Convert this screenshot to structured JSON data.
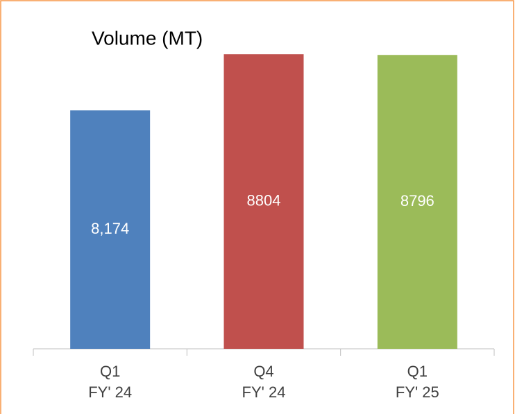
{
  "chart_data": {
    "type": "bar",
    "title": "Volume (MT)",
    "categories": [
      [
        "Q1",
        "FY' 24"
      ],
      [
        "Q4",
        "FY' 24"
      ],
      [
        "Q1",
        "FY' 25"
      ]
    ],
    "values": [
      8174,
      8804,
      8796
    ],
    "value_labels": [
      "8,174",
      "8804",
      "8796"
    ],
    "colors": [
      "#4f81bd",
      "#c0504d",
      "#9bbb59"
    ],
    "ylim": [
      5500,
      9000
    ]
  }
}
